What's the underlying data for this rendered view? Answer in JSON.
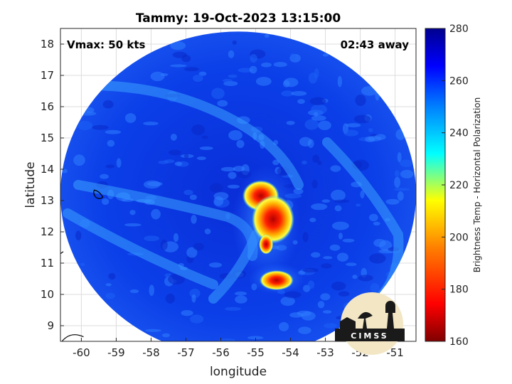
{
  "title": "Tammy: 19-Oct-2023 13:15:00",
  "vmax_label": "Vmax: 50 kts",
  "time_away_label": "02:43 away",
  "x_axis": {
    "label": "longitude",
    "range": [
      -60.6,
      -50.4
    ],
    "ticks": [
      -60,
      -59,
      -58,
      -57,
      -56,
      -55,
      -54,
      -53,
      -52,
      -51
    ]
  },
  "y_axis": {
    "label": "latitude",
    "range": [
      8.5,
      18.5
    ],
    "ticks": [
      9,
      10,
      11,
      12,
      13,
      14,
      15,
      16,
      17,
      18
    ]
  },
  "grid": true,
  "colorbar": {
    "label": "Brightness Temp - Horizontal Polarization",
    "range": [
      160,
      280
    ],
    "ticks": [
      160,
      180,
      200,
      220,
      240,
      260,
      280
    ],
    "colormap": [
      "#800000",
      "#ff0000",
      "#ff8000",
      "#ffff00",
      "#00ffff",
      "#0080ff",
      "#0000ff",
      "#00008f"
    ]
  },
  "swath": {
    "center_lon": -55.5,
    "center_lat": 13.2,
    "radius_lon": 5.1,
    "radius_lat": 5.2
  },
  "features": [
    {
      "name": "eyewall-north",
      "lon": -54.85,
      "lat": 13.15,
      "tb": 175
    },
    {
      "name": "eyewall-east",
      "lon": -54.5,
      "lat": 12.4,
      "tb": 180
    },
    {
      "name": "rainband-south",
      "lon": -54.4,
      "lat": 10.45,
      "tb": 172
    }
  ],
  "logo": {
    "text": "CIMSS"
  }
}
